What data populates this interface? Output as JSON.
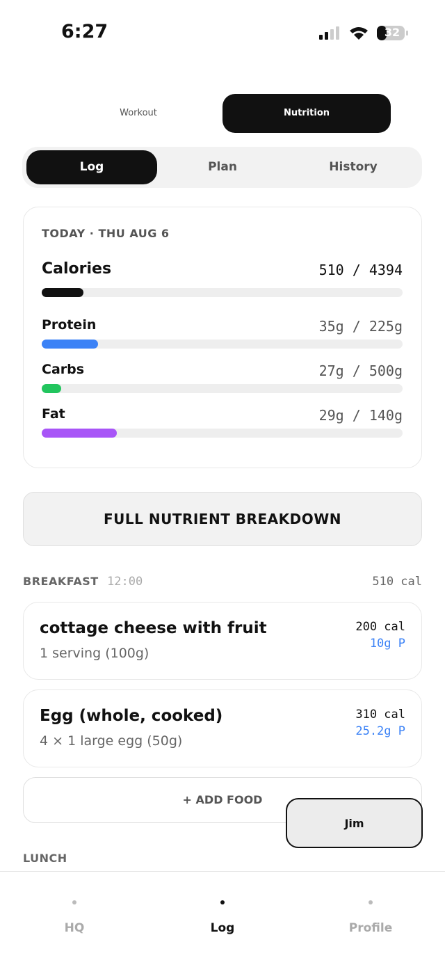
{
  "status": {
    "time": "6:27",
    "battery": "32"
  },
  "tabs": [
    "Workout",
    "Nutrition"
  ],
  "subtabs": [
    "Log",
    "Plan",
    "History"
  ],
  "summary": {
    "date": "TODAY · THU AUG 6",
    "nutrients": [
      {
        "name": "Calories",
        "consumed": 510,
        "target": 4394,
        "label": "510 / 4394",
        "color": "#111111"
      },
      {
        "name": "Protein",
        "consumed": 35,
        "target": 225,
        "label": "35g / 225g",
        "color": "#3b82f6"
      },
      {
        "name": "Carbs",
        "consumed": 27,
        "target": 500,
        "label": "27g / 500g",
        "color": "#22c55e"
      },
      {
        "name": "Fat",
        "consumed": 29,
        "target": 140,
        "label": "29g / 140g",
        "color": "#a855f7"
      }
    ]
  },
  "breakdown_button": "FULL NUTRIENT BREAKDOWN",
  "meal": {
    "name": "BREAKFAST",
    "time": "12:00",
    "total": "510 cal",
    "foods": [
      {
        "name": "cottage cheese with fruit",
        "serving": "1 serving (100g)",
        "calories": "200 cal",
        "protein": "10g P"
      },
      {
        "name": "Egg (whole, cooked)",
        "serving": "4 × 1 large egg (50g)",
        "calories": "310 cal",
        "protein": "25.2g P"
      }
    ]
  },
  "add_food": "+ ADD FOOD",
  "floating_button": "Jim",
  "next_meal": "LUNCH",
  "nav": [
    "HQ",
    "Log",
    "Profile"
  ]
}
